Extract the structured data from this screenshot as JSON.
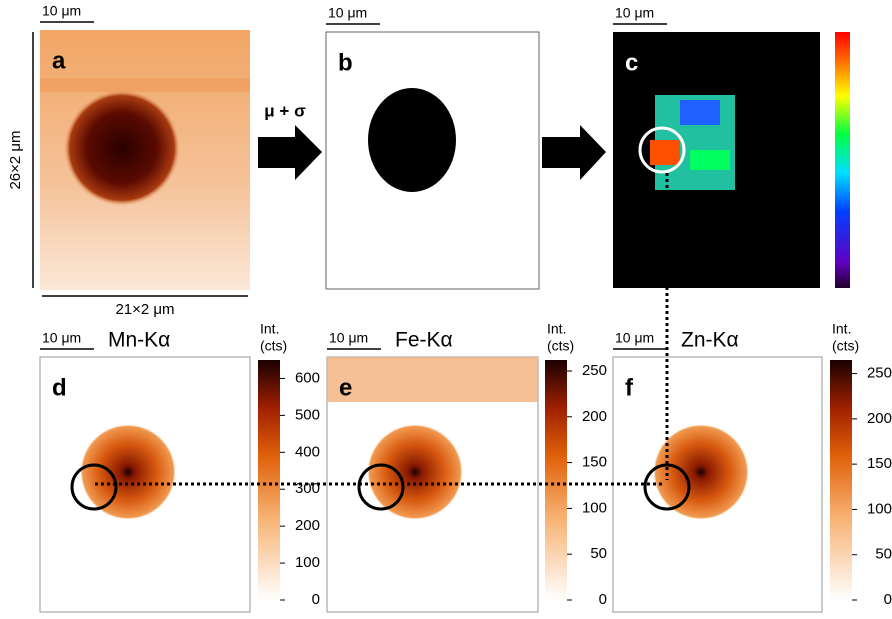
{
  "arrow_label": "μ + σ",
  "panels": [
    {
      "label": "a",
      "scale_bar": "10 μm",
      "y_dimension": "26×2 μm",
      "x_dimension": "21×2 μm"
    },
    {
      "label": "b",
      "scale_bar": "10 μm"
    },
    {
      "label": "c",
      "scale_bar": "10 μm"
    },
    {
      "label": "d",
      "scale_bar": "10 μm",
      "title": "Mn-Kα",
      "colorbar": {
        "title_lines": [
          "Int.",
          "(cts)"
        ],
        "lim": [
          0,
          650
        ],
        "ticks": [
          0,
          100,
          200,
          300,
          400,
          500,
          600
        ]
      }
    },
    {
      "label": "e",
      "scale_bar": "10 μm",
      "title": "Fe-Kα",
      "colorbar": {
        "title_lines": [
          "Int.",
          "(cts)"
        ],
        "lim": [
          0,
          262
        ],
        "ticks": [
          0,
          50,
          100,
          150,
          200,
          250
        ]
      }
    },
    {
      "label": "f",
      "scale_bar": "10 μm",
      "title": "Zn-Kα",
      "colorbar": {
        "title_lines": [
          "Int.",
          "(cts)"
        ],
        "lim": [
          0,
          265
        ],
        "ticks": [
          0,
          50,
          100,
          150,
          200,
          250
        ]
      }
    }
  ]
}
